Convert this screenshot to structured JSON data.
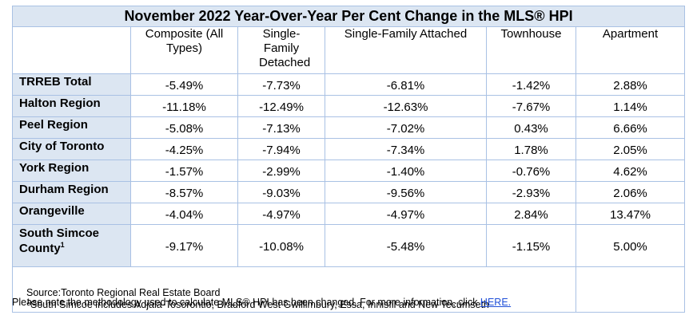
{
  "title": "November 2022 Year-Over-Year Per Cent Change in the MLS® HPI",
  "columns": [
    "Composite (All Types)",
    "Single-Family Detached",
    "Single-Family Attached",
    "Townhouse",
    "Apartment"
  ],
  "rows": [
    {
      "region": "TRREB Total",
      "footnote": "",
      "values": [
        "-5.49%",
        "-7.73%",
        "-6.81%",
        "-1.42%",
        "2.88%"
      ]
    },
    {
      "region": "Halton Region",
      "footnote": "",
      "values": [
        "-11.18%",
        "-12.49%",
        "-12.63%",
        "-7.67%",
        "1.14%"
      ]
    },
    {
      "region": "Peel Region",
      "footnote": "",
      "values": [
        "-5.08%",
        "-7.13%",
        "-7.02%",
        "0.43%",
        "6.66%"
      ]
    },
    {
      "region": "City of Toronto",
      "footnote": "",
      "values": [
        "-4.25%",
        "-7.94%",
        "-7.34%",
        "1.78%",
        "2.05%"
      ]
    },
    {
      "region": "York Region",
      "footnote": "",
      "values": [
        "-1.57%",
        "-2.99%",
        "-1.40%",
        "-0.76%",
        "4.62%"
      ]
    },
    {
      "region": "Durham Region",
      "footnote": "",
      "values": [
        "-8.57%",
        "-9.03%",
        "-9.56%",
        "-2.93%",
        "2.06%"
      ]
    },
    {
      "region": "Orangeville",
      "footnote": "",
      "values": [
        "-4.04%",
        "-4.97%",
        "-4.97%",
        "2.84%",
        "13.47%"
      ]
    },
    {
      "region": "South Simcoe County",
      "footnote": "1",
      "values": [
        "-9.17%",
        "-10.08%",
        "-5.48%",
        "-1.15%",
        "5.00%"
      ]
    }
  ],
  "notes": {
    "source": "Source:Toronto Regional Real Estate Board",
    "footnote_mark": "1",
    "footnote": "South Simcoe includes Adjala-Tosorontio, Bradford West Gwillimbury, Essa, Innisfil and New Tecumseth"
  },
  "bottom_note": {
    "text": "Please note the methodology used to calculate MLS® HPI has been changed. For more information, click ",
    "link_text": "HERE."
  },
  "colors": {
    "header_fill": "#dce6f2",
    "border": "#a9c1e4",
    "link": "#1f4fd8"
  }
}
